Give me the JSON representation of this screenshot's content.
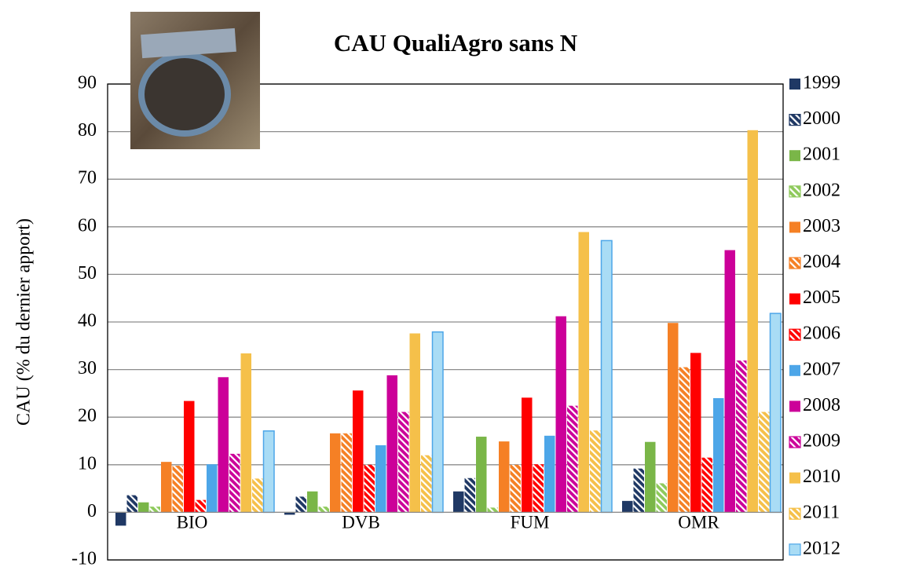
{
  "chart_data": {
    "type": "bar",
    "title": "CAU QualiAgro sans N",
    "ylabel": "CAU (% du dernier apport)",
    "categories": [
      "BIO",
      "DVB",
      "FUM",
      "OMR"
    ],
    "ylim": [
      -10,
      90
    ],
    "yticks": [
      -10,
      0,
      10,
      20,
      30,
      40,
      50,
      60,
      70,
      80,
      90
    ],
    "grid": true,
    "series": [
      {
        "name": "1999",
        "color": "#1f3864",
        "hatch": false,
        "values": [
          -2.8,
          -0.5,
          4.4,
          2.4
        ]
      },
      {
        "name": "2000",
        "color": "#1f3864",
        "hatch": true,
        "values": [
          3.6,
          3.3,
          7.2,
          9.2
        ]
      },
      {
        "name": "2001",
        "color": "#7ab648",
        "hatch": false,
        "values": [
          2.1,
          4.4,
          15.9,
          14.8
        ]
      },
      {
        "name": "2002",
        "color": "#8fca5c",
        "hatch": true,
        "values": [
          1.2,
          1.2,
          1.0,
          6.1
        ]
      },
      {
        "name": "2003",
        "color": "#f58025",
        "hatch": false,
        "values": [
          10.6,
          16.6,
          14.9,
          39.8
        ]
      },
      {
        "name": "2004",
        "color": "#f58025",
        "hatch": true,
        "values": [
          9.8,
          16.6,
          10.0,
          30.5
        ]
      },
      {
        "name": "2005",
        "color": "#ff0000",
        "hatch": false,
        "values": [
          23.4,
          25.6,
          24.1,
          33.5
        ]
      },
      {
        "name": "2006",
        "color": "#ff0000",
        "hatch": true,
        "values": [
          2.6,
          10.0,
          10.1,
          11.5
        ]
      },
      {
        "name": "2007",
        "color": "#4da6e8",
        "hatch": false,
        "values": [
          10.1,
          14.1,
          16.1,
          24.0
        ]
      },
      {
        "name": "2008",
        "color": "#cc0099",
        "hatch": false,
        "values": [
          28.4,
          28.8,
          41.2,
          55.1
        ]
      },
      {
        "name": "2009",
        "color": "#cc0099",
        "hatch": true,
        "values": [
          12.3,
          21.1,
          22.4,
          31.9
        ]
      },
      {
        "name": "2010",
        "color": "#f5c04a",
        "hatch": false,
        "values": [
          33.4,
          37.6,
          58.9,
          80.3
        ]
      },
      {
        "name": "2011",
        "color": "#f5c04a",
        "hatch": true,
        "values": [
          7.1,
          12.0,
          17.2,
          21.1
        ]
      },
      {
        "name": "2012",
        "color": "#a9dcf5",
        "hatch": false,
        "values": [
          17.1,
          37.9,
          57.1,
          41.8
        ]
      }
    ]
  }
}
